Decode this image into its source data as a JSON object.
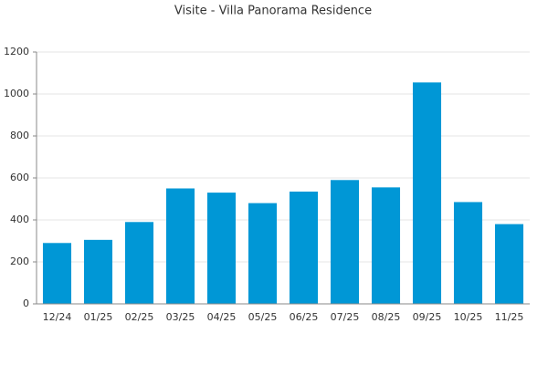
{
  "chart_data": {
    "type": "bar",
    "title": "Visite - Villa Panorama Residence",
    "categories": [
      "12/24",
      "01/25",
      "02/25",
      "03/25",
      "04/25",
      "05/25",
      "06/25",
      "07/25",
      "08/25",
      "09/25",
      "10/25",
      "11/25"
    ],
    "values": [
      290,
      305,
      390,
      550,
      530,
      480,
      535,
      590,
      555,
      1055,
      485,
      380
    ],
    "color": "#0097d6",
    "ylim": [
      0,
      1200
    ],
    "yticks": [
      0,
      200,
      400,
      600,
      800,
      1000,
      1200
    ],
    "grid": true
  }
}
